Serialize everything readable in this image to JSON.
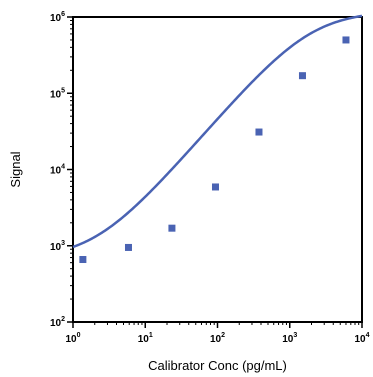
{
  "chart_data": {
    "type": "scatter",
    "title": "",
    "xlabel": "Calibrator Conc (pg/mL)",
    "ylabel": "Signal",
    "x_scale": "log",
    "y_scale": "log",
    "xlim": [
      1,
      10000
    ],
    "ylim": [
      100,
      1000000
    ],
    "x_ticks": [
      {
        "base": "10",
        "exp": "0"
      },
      {
        "base": "10",
        "exp": "1"
      },
      {
        "base": "10",
        "exp": "2"
      },
      {
        "base": "10",
        "exp": "3"
      },
      {
        "base": "10",
        "exp": "4"
      }
    ],
    "y_ticks": [
      {
        "base": "10",
        "exp": "2"
      },
      {
        "base": "10",
        "exp": "3"
      },
      {
        "base": "10",
        "exp": "4"
      },
      {
        "base": "10",
        "exp": "5"
      },
      {
        "base": "10",
        "exp": "6"
      }
    ],
    "grid": false,
    "series": [
      {
        "kind": "points",
        "marker": "square",
        "color": "#4a63b3",
        "x": [
          1.37,
          5.86,
          23.4,
          93.8,
          375,
          1500,
          6000
        ],
        "y": [
          660,
          950,
          1700,
          5900,
          31000,
          170000,
          500000
        ]
      },
      {
        "kind": "fit-curve",
        "color": "#4a63b3",
        "fit": {
          "A": 668,
          "D": 1200000,
          "C": 1900,
          "B": 1.1
        }
      }
    ]
  }
}
